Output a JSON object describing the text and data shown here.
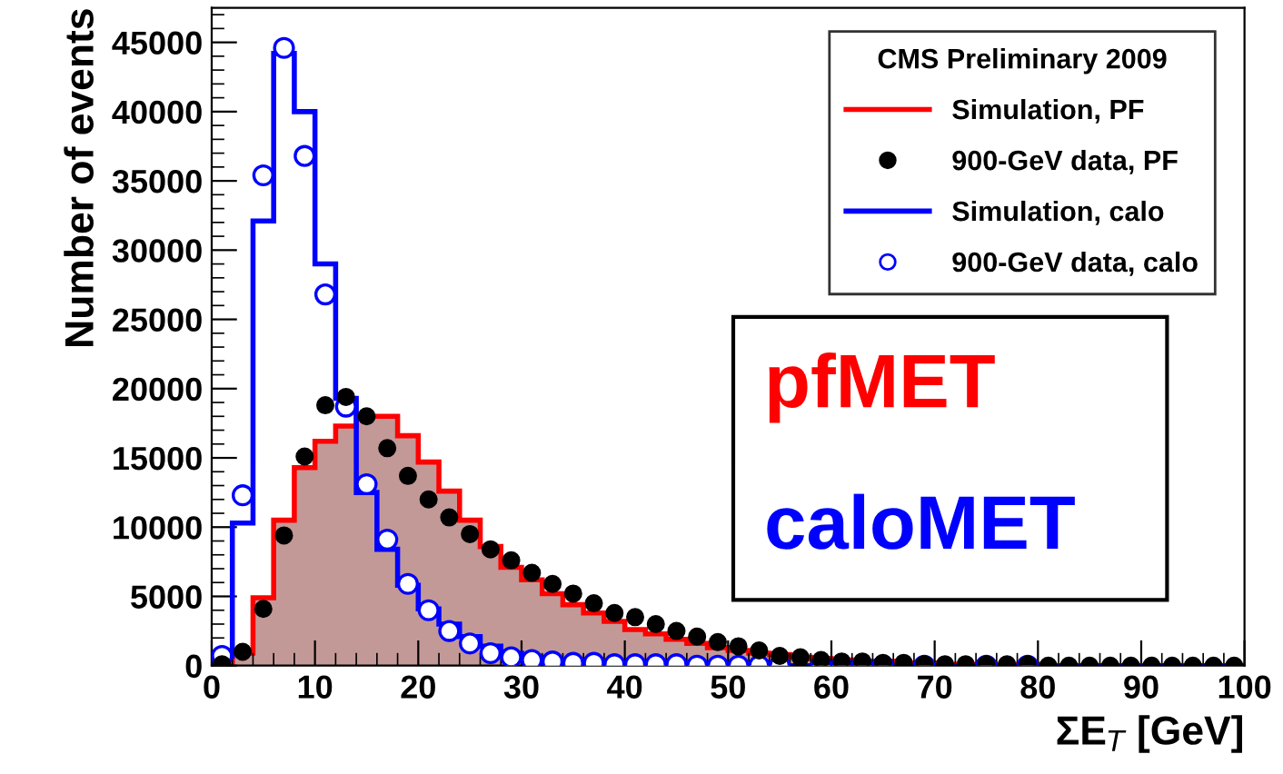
{
  "chart_data": {
    "type": "histogram",
    "xlabel": "ΣE$_{T}$ [GeV]",
    "ylabel": "Number of events",
    "legend_title": "CMS Preliminary 2009",
    "bins": [
      0,
      2,
      4,
      6,
      8,
      10,
      12,
      14,
      16,
      18,
      20,
      22,
      24,
      26,
      28,
      30,
      32,
      34,
      36,
      38,
      40,
      42,
      44,
      46,
      48,
      50,
      52,
      54,
      56,
      58,
      60,
      62,
      64,
      66,
      68,
      70,
      72,
      74,
      76,
      78,
      80,
      82,
      84,
      86,
      88,
      90,
      92,
      94,
      96,
      98,
      100
    ],
    "series": [
      {
        "name": "Simulation, PF",
        "color": "#ff0000",
        "values": [
          100,
          900,
          4900,
          10500,
          14300,
          16200,
          17300,
          18000,
          18000,
          16600,
          14700,
          12600,
          10500,
          8600,
          7100,
          6200,
          5200,
          4400,
          3800,
          3200,
          2600,
          2300,
          1900,
          1600,
          1300,
          1100,
          900,
          800,
          600,
          500,
          400,
          300,
          300,
          200,
          200,
          100,
          100,
          100,
          100,
          100,
          0,
          0,
          0,
          0,
          0,
          0,
          0,
          0,
          0,
          0
        ]
      },
      {
        "name": "900-GeV data, PF",
        "type": "scatter",
        "color": "#000000",
        "marker": "circle",
        "x": [
          1,
          3,
          5,
          7,
          9,
          11,
          13,
          15,
          17,
          19,
          21,
          23,
          25,
          27,
          29,
          31,
          33,
          35,
          37,
          39,
          41,
          43,
          45,
          47,
          49,
          51,
          53,
          55,
          57,
          59,
          61,
          63,
          65,
          67,
          69,
          71,
          73,
          75,
          77,
          79,
          81,
          83,
          85,
          87,
          89,
          91,
          93,
          95,
          97,
          99
        ],
        "values": [
          100,
          1000,
          4100,
          9400,
          15100,
          18800,
          19400,
          18000,
          15700,
          13700,
          12000,
          10700,
          9500,
          8400,
          7600,
          6700,
          5900,
          5200,
          4500,
          3800,
          3500,
          3000,
          2500,
          2100,
          1700,
          1400,
          1100,
          700,
          600,
          400,
          300,
          300,
          200,
          200,
          100,
          100,
          100,
          100,
          100,
          100,
          0,
          0,
          0,
          0,
          0,
          0,
          0,
          0,
          0,
          0
        ]
      },
      {
        "name": "Simulation, calo",
        "color": "#0000ff",
        "values": [
          700,
          10300,
          32100,
          44200,
          40000,
          29000,
          19300,
          12500,
          8400,
          5800,
          4100,
          3000,
          2100,
          1400,
          900,
          600,
          400,
          300,
          200,
          200,
          100,
          100,
          100,
          0,
          0,
          0,
          0,
          0,
          0,
          0,
          0,
          0,
          0,
          0,
          0,
          0,
          0,
          0,
          0,
          0,
          0,
          0,
          0,
          0,
          0,
          0,
          0,
          0,
          0,
          0
        ]
      },
      {
        "name": "900-GeV data, calo",
        "type": "scatter",
        "color": "#0000ff",
        "marker": "circle",
        "x": [
          1,
          3,
          5,
          7,
          9,
          11,
          13,
          15,
          17,
          19,
          21,
          23,
          25,
          27,
          29,
          31,
          33,
          35,
          37,
          39,
          41,
          43,
          45,
          47,
          49,
          51,
          53,
          55,
          57,
          59,
          61,
          63,
          65,
          67,
          69,
          71,
          73,
          75,
          77,
          79
        ],
        "values": [
          700,
          12300,
          35400,
          44600,
          36800,
          26800,
          18700,
          13100,
          9100,
          5900,
          4000,
          2500,
          1600,
          900,
          600,
          400,
          300,
          200,
          200,
          100,
          100,
          100,
          100,
          0,
          0,
          0,
          0,
          0,
          null,
          0,
          0,
          0,
          0,
          null,
          0,
          null,
          null,
          0,
          null,
          0
        ]
      }
    ],
    "annotations": [
      "pfMET",
      "caloMET"
    ],
    "xlim": [
      0,
      100
    ],
    "xticks": [
      0,
      10,
      20,
      30,
      40,
      50,
      60,
      70,
      80,
      90,
      100
    ],
    "ylim": [
      0,
      47500
    ],
    "yticks": [
      0,
      5000,
      10000,
      15000,
      20000,
      25000,
      30000,
      35000,
      40000,
      45000
    ],
    "grid": false,
    "legend": "top right"
  }
}
